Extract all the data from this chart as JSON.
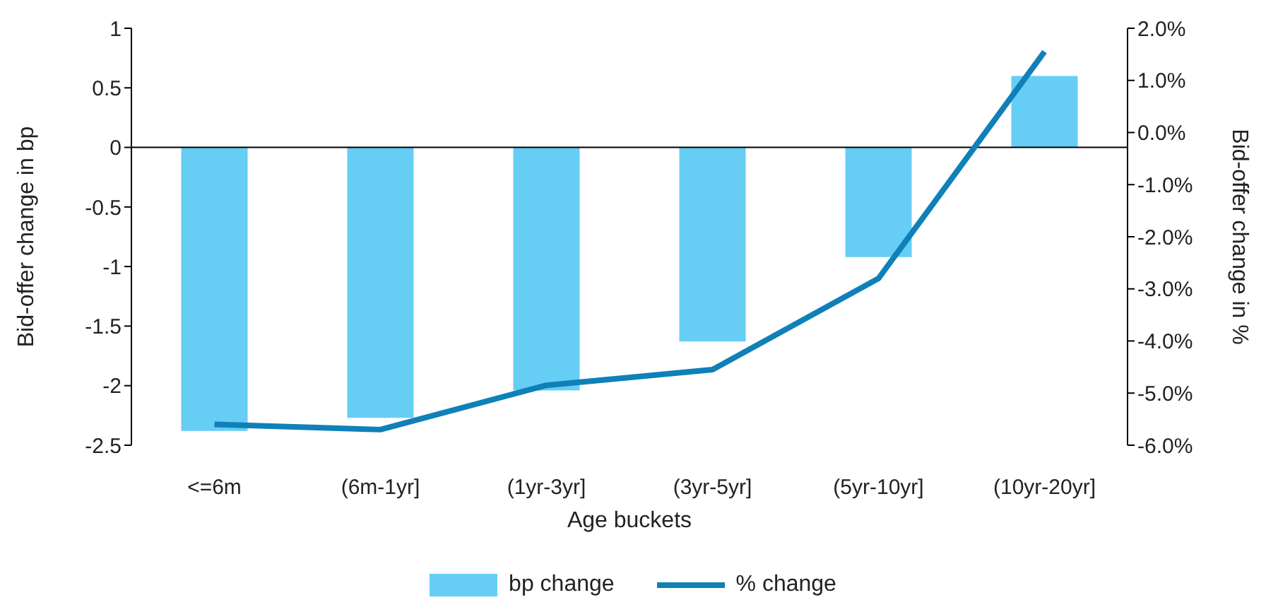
{
  "chart_data": {
    "type": "bar",
    "xlabel": "Age buckets",
    "ylabel": "Bid-offer change in bp",
    "y2label": "Bid-offer change in %",
    "categories": [
      "<=6m",
      "(6m-1yr]",
      "(1yr-3yr]",
      "(3yr-5yr]",
      "(5yr-10yr]",
      "(10yr-20yr]"
    ],
    "series": [
      {
        "name": "bp change",
        "color": "#66cdf4",
        "values": [
          -2.38,
          -2.27,
          -2.04,
          -1.63,
          -0.92,
          0.6
        ]
      },
      {
        "name": "% change",
        "type": "line",
        "axis": "y2",
        "color": "#0f80b8",
        "values": [
          -5.6,
          -5.7,
          -4.85,
          -4.55,
          -2.8,
          1.55
        ]
      }
    ],
    "ylim": [
      -2.5,
      1
    ],
    "yticks": [
      -2.5,
      -2,
      -1.5,
      -1,
      -0.5,
      0,
      0.5,
      1
    ],
    "y2lim": [
      -6,
      2
    ],
    "y2ticks": [
      {
        "value": -6,
        "label": "-6.0%"
      },
      {
        "value": -5,
        "label": "-5.0%"
      },
      {
        "value": -4,
        "label": "-4.0%"
      },
      {
        "value": -3,
        "label": "-3.0%"
      },
      {
        "value": -2,
        "label": "-2.0%"
      },
      {
        "value": -1,
        "label": "-1.0%"
      },
      {
        "value": 0,
        "label": "0.0%"
      },
      {
        "value": 1,
        "label": "1.0%"
      },
      {
        "value": 2,
        "label": "2.0%"
      }
    ],
    "legend": "bottom",
    "marker": "none",
    "line_style": "solid"
  }
}
